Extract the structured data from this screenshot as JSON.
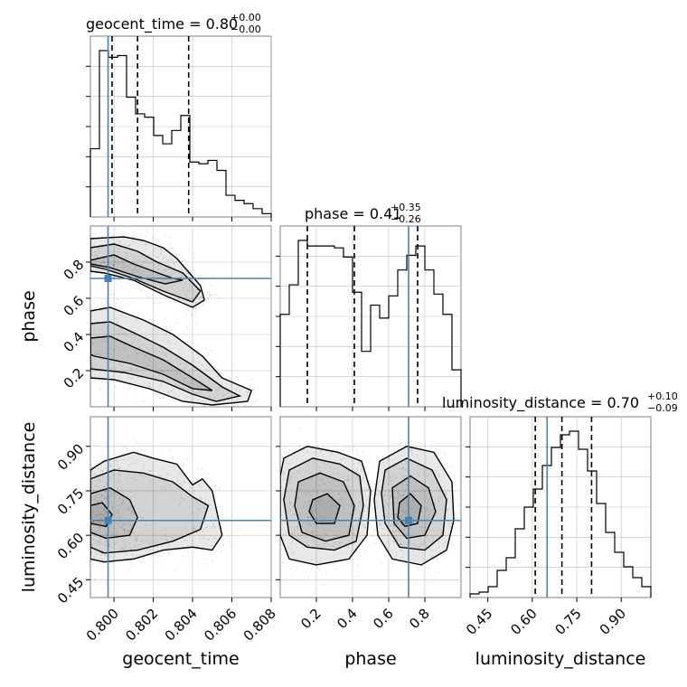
{
  "chart_data": {
    "type": "corner",
    "parameters": [
      "geocent_time",
      "phase",
      "luminosity_distance"
    ],
    "truths": {
      "geocent_time": 0.7997,
      "phase": 0.71,
      "luminosity_distance": 0.65
    },
    "colors": {
      "truth": "#4682b4",
      "hist": "#000000",
      "grid": "#b0b0b0",
      "frame": "#808080"
    },
    "titles": [
      {
        "param": "geocent_time",
        "text": "geocent_time = 0.80",
        "plus": "+0.00",
        "minus": "−0.00"
      },
      {
        "param": "phase",
        "text": "phase = 0.41",
        "plus": "+0.35",
        "minus": "−0.26"
      },
      {
        "param": "luminosity_distance",
        "text": "luminosity_distance = 0.70",
        "plus": "+0.10",
        "minus": "−0.09"
      }
    ],
    "axes": {
      "geocent_time": {
        "range": [
          0.7988,
          0.808
        ],
        "ticks": [
          0.8,
          0.802,
          0.804,
          0.806,
          0.808
        ],
        "tick_labels": [
          "0.800",
          "0.802",
          "0.804",
          "0.806",
          "0.808"
        ]
      },
      "phase": {
        "range": [
          0.0,
          1.0
        ],
        "ticks": [
          0.2,
          0.4,
          0.6,
          0.8
        ],
        "tick_labels": [
          "0.2",
          "0.4",
          "0.6",
          "0.8"
        ]
      },
      "luminosity_distance": {
        "range": [
          0.39,
          1.0
        ],
        "ticks": [
          0.45,
          0.6,
          0.75,
          0.9
        ],
        "tick_labels": [
          "0.45",
          "0.60",
          "0.75",
          "0.90"
        ]
      }
    },
    "histograms": {
      "geocent_time": {
        "edges": [
          0.7988,
          0.79926,
          0.79972,
          0.80018,
          0.80064,
          0.8011,
          0.80156,
          0.80202,
          0.80248,
          0.80294,
          0.8034,
          0.80386,
          0.80432,
          0.80478,
          0.80524,
          0.8057,
          0.80616,
          0.80662,
          0.80708,
          0.80754,
          0.808
        ],
        "counts": [
          0.41,
          1.0,
          0.96,
          0.97,
          0.72,
          0.62,
          0.6,
          0.49,
          0.44,
          0.52,
          0.61,
          0.33,
          0.32,
          0.34,
          0.28,
          0.13,
          0.1,
          0.08,
          0.05,
          0.02
        ],
        "quantiles": [
          0.7999,
          0.8012,
          0.8038
        ]
      },
      "phase": {
        "edges": [
          0.0,
          0.05,
          0.1,
          0.15,
          0.2,
          0.25,
          0.3,
          0.35,
          0.4,
          0.45,
          0.5,
          0.55,
          0.6,
          0.65,
          0.7,
          0.75,
          0.8,
          0.85,
          0.9,
          0.95,
          1.0
        ],
        "counts": [
          0.5,
          0.66,
          0.9,
          0.87,
          0.87,
          0.87,
          0.86,
          0.81,
          0.62,
          0.3,
          0.55,
          0.48,
          0.6,
          0.74,
          0.82,
          0.87,
          0.74,
          0.61,
          0.5,
          0.2
        ],
        "quantiles": [
          0.15,
          0.41,
          0.76
        ]
      },
      "luminosity_distance": {
        "edges": [
          0.39,
          0.4205,
          0.451,
          0.4815,
          0.512,
          0.5425,
          0.573,
          0.6035,
          0.634,
          0.6645,
          0.695,
          0.7255,
          0.756,
          0.7865,
          0.817,
          0.8475,
          0.878,
          0.9085,
          0.939,
          0.9695,
          1.0
        ],
        "counts": [
          0.02,
          0.03,
          0.06,
          0.15,
          0.22,
          0.38,
          0.5,
          0.6,
          0.73,
          0.83,
          0.9,
          0.92,
          0.82,
          0.7,
          0.52,
          0.36,
          0.25,
          0.17,
          0.11,
          0.06
        ],
        "quantiles": [
          0.61,
          0.7,
          0.8
        ]
      }
    },
    "contours": [
      {
        "x": "geocent_time",
        "y": "phase",
        "levels": [
          [
            [
              0.7988,
              0.93
            ],
            [
              0.8005,
              0.94
            ],
            [
              0.8015,
              0.92
            ],
            [
              0.8025,
              0.88
            ],
            [
              0.8032,
              0.82
            ],
            [
              0.8036,
              0.77
            ],
            [
              0.8044,
              0.67
            ],
            [
              0.8046,
              0.59
            ],
            [
              0.804,
              0.55
            ],
            [
              0.8025,
              0.62
            ],
            [
              0.801,
              0.7
            ],
            [
              0.7995,
              0.74
            ],
            [
              0.7988,
              0.75
            ]
          ],
          [
            [
              0.7988,
              0.88
            ],
            [
              0.8,
              0.9
            ],
            [
              0.8012,
              0.86
            ],
            [
              0.8022,
              0.8
            ],
            [
              0.8035,
              0.74
            ],
            [
              0.8044,
              0.64
            ],
            [
              0.804,
              0.58
            ],
            [
              0.8025,
              0.64
            ],
            [
              0.801,
              0.71
            ],
            [
              0.7996,
              0.76
            ],
            [
              0.7988,
              0.78
            ]
          ],
          [
            [
              0.7988,
              0.81
            ],
            [
              0.8,
              0.84
            ],
            [
              0.801,
              0.79
            ],
            [
              0.802,
              0.75
            ],
            [
              0.803,
              0.71
            ],
            [
              0.8035,
              0.7
            ],
            [
              0.8026,
              0.68
            ],
            [
              0.8012,
              0.72
            ],
            [
              0.7998,
              0.77
            ],
            [
              0.7988,
              0.79
            ]
          ],
          [
            [
              0.7988,
              0.53
            ],
            [
              0.7998,
              0.55
            ],
            [
              0.8015,
              0.48
            ],
            [
              0.803,
              0.4
            ],
            [
              0.8045,
              0.28
            ],
            [
              0.8055,
              0.16
            ],
            [
              0.807,
              0.09
            ],
            [
              0.8068,
              0.03
            ],
            [
              0.805,
              0.01
            ],
            [
              0.8035,
              0.03
            ],
            [
              0.8018,
              0.1
            ],
            [
              0.8,
              0.15
            ],
            [
              0.7988,
              0.16
            ]
          ],
          [
            [
              0.7988,
              0.46
            ],
            [
              0.7998,
              0.47
            ],
            [
              0.801,
              0.41
            ],
            [
              0.8025,
              0.33
            ],
            [
              0.804,
              0.23
            ],
            [
              0.8055,
              0.11
            ],
            [
              0.8064,
              0.06
            ],
            [
              0.8052,
              0.03
            ],
            [
              0.804,
              0.07
            ],
            [
              0.8025,
              0.14
            ],
            [
              0.8005,
              0.19
            ],
            [
              0.7988,
              0.21
            ]
          ],
          [
            [
              0.7988,
              0.38
            ],
            [
              0.7998,
              0.39
            ],
            [
              0.801,
              0.33
            ],
            [
              0.8025,
              0.26
            ],
            [
              0.804,
              0.16
            ],
            [
              0.805,
              0.09
            ],
            [
              0.804,
              0.1
            ],
            [
              0.8025,
              0.18
            ],
            [
              0.8008,
              0.24
            ],
            [
              0.799,
              0.28
            ],
            [
              0.7988,
              0.29
            ]
          ]
        ]
      },
      {
        "x": "geocent_time",
        "y": "luminosity_distance",
        "levels": [
          [
            [
              0.7988,
              0.82
            ],
            [
              0.7995,
              0.85
            ],
            [
              0.801,
              0.88
            ],
            [
              0.802,
              0.86
            ],
            [
              0.8032,
              0.84
            ],
            [
              0.804,
              0.77
            ],
            [
              0.8045,
              0.79
            ],
            [
              0.805,
              0.75
            ],
            [
              0.8055,
              0.6
            ],
            [
              0.805,
              0.55
            ],
            [
              0.804,
              0.56
            ],
            [
              0.8025,
              0.55
            ],
            [
              0.801,
              0.52
            ],
            [
              0.7995,
              0.51
            ],
            [
              0.7988,
              0.52
            ]
          ],
          [
            [
              0.7988,
              0.79
            ],
            [
              0.8,
              0.82
            ],
            [
              0.8015,
              0.81
            ],
            [
              0.803,
              0.78
            ],
            [
              0.804,
              0.73
            ],
            [
              0.8048,
              0.7
            ],
            [
              0.8044,
              0.62
            ],
            [
              0.803,
              0.58
            ],
            [
              0.8012,
              0.55
            ],
            [
              0.7995,
              0.54
            ],
            [
              0.7988,
              0.56
            ]
          ],
          [
            [
              0.7988,
              0.74
            ],
            [
              0.7998,
              0.76
            ],
            [
              0.8008,
              0.72
            ],
            [
              0.8012,
              0.66
            ],
            [
              0.8008,
              0.6
            ],
            [
              0.7996,
              0.59
            ],
            [
              0.7988,
              0.61
            ]
          ],
          [
            [
              0.7988,
              0.7
            ],
            [
              0.7994,
              0.71
            ],
            [
              0.7999,
              0.67
            ],
            [
              0.7996,
              0.63
            ],
            [
              0.7988,
              0.64
            ]
          ]
        ]
      },
      {
        "x": "phase",
        "y": "luminosity_distance",
        "levels": [
          [
            [
              0.02,
              0.86
            ],
            [
              0.15,
              0.9
            ],
            [
              0.32,
              0.88
            ],
            [
              0.45,
              0.85
            ],
            [
              0.5,
              0.75
            ],
            [
              0.48,
              0.6
            ],
            [
              0.38,
              0.52
            ],
            [
              0.2,
              0.5
            ],
            [
              0.05,
              0.52
            ],
            [
              0.0,
              0.6
            ],
            [
              0.0,
              0.8
            ]
          ],
          [
            [
              0.05,
              0.82
            ],
            [
              0.18,
              0.86
            ],
            [
              0.33,
              0.84
            ],
            [
              0.44,
              0.8
            ],
            [
              0.46,
              0.7
            ],
            [
              0.42,
              0.58
            ],
            [
              0.3,
              0.55
            ],
            [
              0.15,
              0.56
            ],
            [
              0.05,
              0.6
            ],
            [
              0.02,
              0.72
            ]
          ],
          [
            [
              0.1,
              0.78
            ],
            [
              0.22,
              0.81
            ],
            [
              0.35,
              0.78
            ],
            [
              0.41,
              0.7
            ],
            [
              0.38,
              0.6
            ],
            [
              0.25,
              0.58
            ],
            [
              0.12,
              0.61
            ],
            [
              0.08,
              0.7
            ]
          ],
          [
            [
              0.18,
              0.72
            ],
            [
              0.26,
              0.74
            ],
            [
              0.33,
              0.7
            ],
            [
              0.3,
              0.64
            ],
            [
              0.2,
              0.64
            ],
            [
              0.16,
              0.68
            ]
          ],
          [
            [
              0.55,
              0.85
            ],
            [
              0.7,
              0.9
            ],
            [
              0.85,
              0.88
            ],
            [
              0.95,
              0.78
            ],
            [
              0.96,
              0.65
            ],
            [
              0.92,
              0.55
            ],
            [
              0.78,
              0.5
            ],
            [
              0.62,
              0.52
            ],
            [
              0.54,
              0.6
            ],
            [
              0.52,
              0.72
            ]
          ],
          [
            [
              0.58,
              0.82
            ],
            [
              0.7,
              0.86
            ],
            [
              0.84,
              0.82
            ],
            [
              0.92,
              0.72
            ],
            [
              0.9,
              0.6
            ],
            [
              0.8,
              0.55
            ],
            [
              0.66,
              0.56
            ],
            [
              0.58,
              0.64
            ],
            [
              0.56,
              0.74
            ]
          ],
          [
            [
              0.62,
              0.76
            ],
            [
              0.72,
              0.8
            ],
            [
              0.82,
              0.76
            ],
            [
              0.86,
              0.68
            ],
            [
              0.8,
              0.6
            ],
            [
              0.7,
              0.59
            ],
            [
              0.63,
              0.64
            ]
          ],
          [
            [
              0.66,
              0.71
            ],
            [
              0.72,
              0.74
            ],
            [
              0.78,
              0.7
            ],
            [
              0.76,
              0.64
            ],
            [
              0.69,
              0.63
            ],
            [
              0.65,
              0.66
            ]
          ]
        ]
      }
    ]
  }
}
